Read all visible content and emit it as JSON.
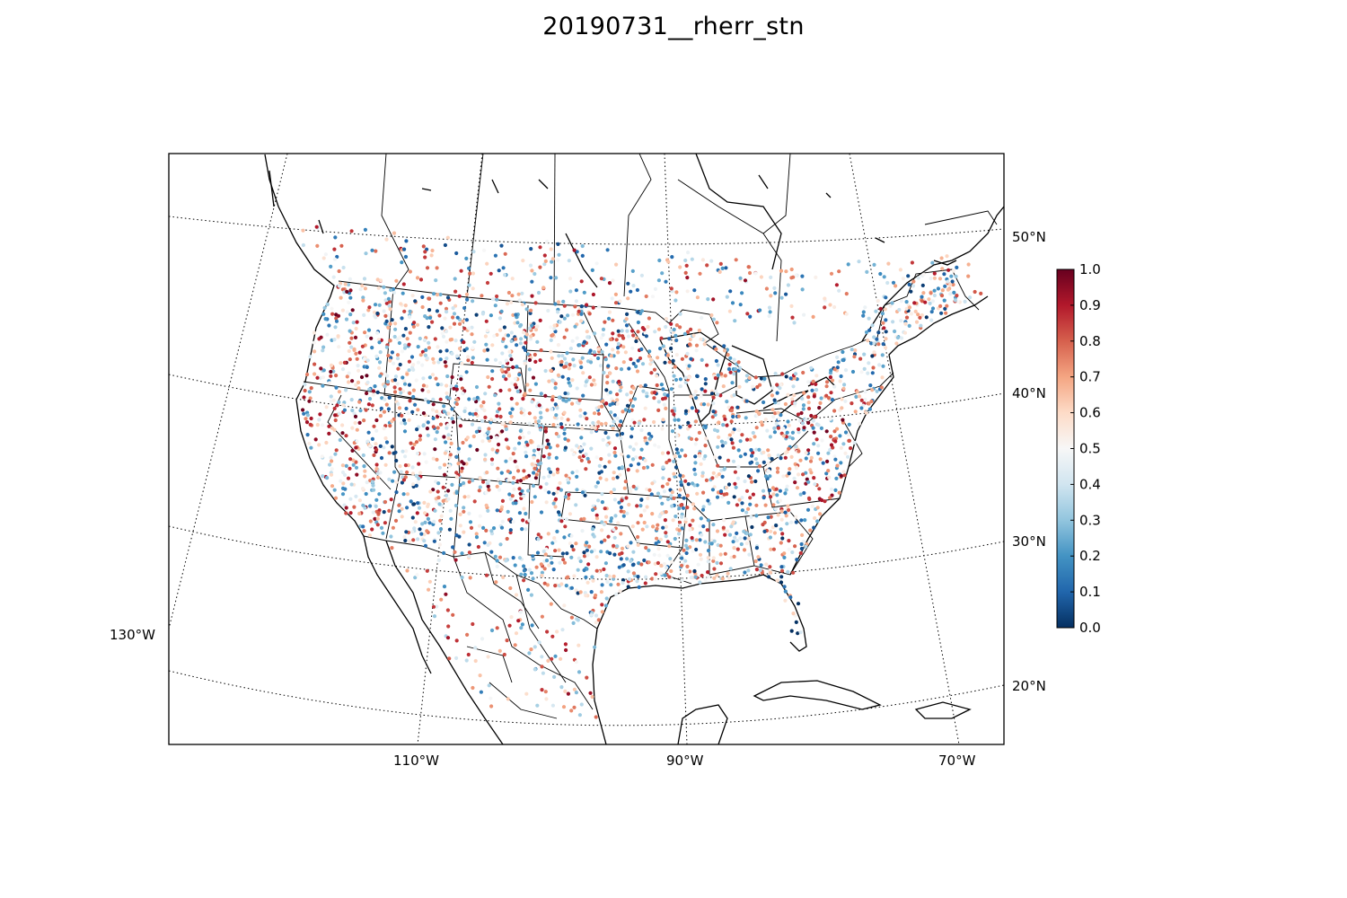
{
  "figure": {
    "title": "20190731__rherr_stn"
  },
  "map": {
    "projection": "lambert-conformal",
    "region": "CONUS",
    "graticule_style": "dotted",
    "parallels": [
      "50°N",
      "40°N",
      "30°N",
      "20°N"
    ],
    "meridians": [
      "130°W",
      "110°W",
      "90°W",
      "70°W"
    ],
    "boundaries": [
      "coastlines",
      "countries",
      "states"
    ]
  },
  "colorbar": {
    "colormap": "RdBu_r",
    "min": 0.0,
    "max": 1.0,
    "ticks": [
      "0.0",
      "0.1",
      "0.2",
      "0.3",
      "0.4",
      "0.5",
      "0.6",
      "0.7",
      "0.8",
      "0.9",
      "1.0"
    ],
    "colors": [
      "#053061",
      "#2166ac",
      "#4393c3",
      "#92c5de",
      "#d1e5f0",
      "#f7f7f7",
      "#fddbc7",
      "#f4a582",
      "#d6604d",
      "#b2182b",
      "#67001f"
    ]
  }
}
